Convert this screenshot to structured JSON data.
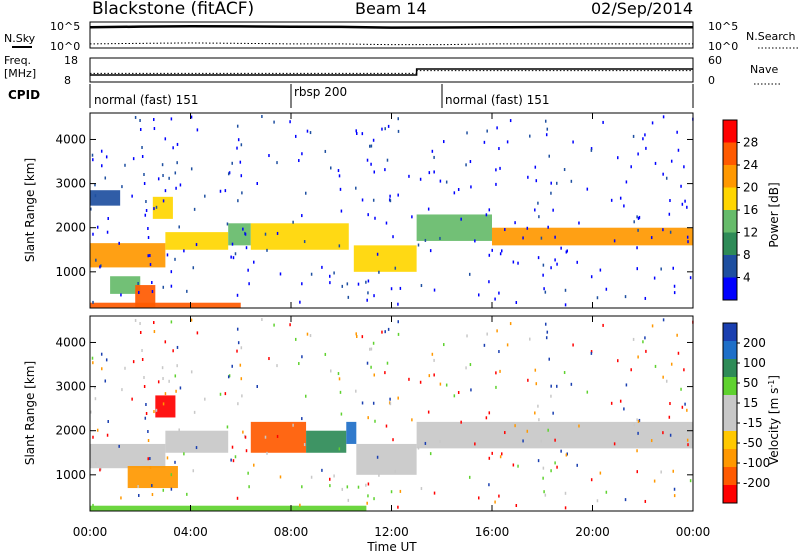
{
  "header": {
    "station": "Blackstone (fitACF)",
    "beam": "Beam 14",
    "date": "02/Sep/2014"
  },
  "sky_panel": {
    "left_label": "N.Sky",
    "right_label": "N.Search",
    "tick_top": "10^5",
    "tick_bottom": "10^0",
    "right_tick_top": "10^5",
    "right_tick_bottom": "10^0"
  },
  "freq_panel": {
    "left_label_top": "Freq.",
    "left_label_unit": "[MHz]",
    "ticks": [
      "18",
      "8"
    ],
    "right_label": "Nave",
    "right_ticks": [
      "60",
      "0"
    ]
  },
  "cpid": {
    "label": "CPID",
    "segments": [
      {
        "start_h": 0,
        "end_h": 8,
        "name": "normal (fast) 151"
      },
      {
        "start_h": 8,
        "end_h": 14,
        "name": "rbsp 200"
      },
      {
        "start_h": 14,
        "end_h": 24,
        "name": "normal (fast) 151"
      }
    ]
  },
  "colors": {
    "power": [
      "#0000ff",
      "#1e4fa0",
      "#2e8b57",
      "#66bb6a",
      "#ffd600",
      "#ff9800",
      "#ff5a00",
      "#ff0000"
    ],
    "velocity": [
      "#ff0000",
      "#ff5a00",
      "#ff9800",
      "#ffc800",
      "#c8c8c8",
      "#c8c8c8",
      "#5fd22f",
      "#2e8b57",
      "#1e6fc8",
      "#1a3fb0"
    ]
  },
  "chart_data": [
    {
      "type": "line",
      "title": "",
      "x": [
        0,
        2,
        4,
        6,
        8,
        10,
        12,
        14,
        16,
        18,
        20,
        22,
        24
      ],
      "series": [
        {
          "name": "N.Sky",
          "values": [
            18000,
            25000,
            30000,
            28000,
            24000,
            22000,
            15000,
            16000,
            18000,
            20000,
            21000,
            19000,
            18000
          ]
        },
        {
          "name": "N.Search",
          "values": [
            3,
            4,
            5,
            4,
            3,
            3,
            2,
            2,
            3,
            3,
            3,
            3,
            3
          ]
        }
      ],
      "ylim": [
        1,
        100000
      ],
      "log_scale": true
    },
    {
      "type": "line",
      "title": "",
      "x": [
        0,
        13,
        13,
        24
      ],
      "series": [
        {
          "name": "Freq.",
          "values": [
            10.5,
            10.5,
            13.5,
            13.5
          ]
        },
        {
          "name": "Nave",
          "values": [
            20,
            20,
            28,
            28
          ]
        }
      ],
      "ylim": [
        8,
        18
      ]
    },
    {
      "type": "heatmap",
      "title": "",
      "xlabel": "Time UT",
      "ylabel": "Slant Range [km]",
      "xlim": [
        0,
        24
      ],
      "ylim": [
        180,
        4600
      ],
      "x_ticks": [
        "00:00",
        "04:00",
        "08:00",
        "12:00",
        "16:00",
        "20:00",
        "00:00"
      ],
      "y_ticks": [
        "1000",
        "2000",
        "3000",
        "4000"
      ],
      "colorbar_label": "Power [dB]",
      "colorbar_ticks": [
        "4",
        "8",
        "12",
        "16",
        "20",
        "24",
        "28"
      ],
      "clim": [
        0,
        32
      ],
      "bands": [
        {
          "t0": 0.0,
          "t1": 3.0,
          "r0": 1100,
          "r1": 1650,
          "value": 22
        },
        {
          "t0": 0.0,
          "t1": 1.2,
          "r0": 2500,
          "r1": 2850,
          "value": 6
        },
        {
          "t0": 2.5,
          "t1": 3.3,
          "r0": 2200,
          "r1": 2700,
          "value": 18
        },
        {
          "t0": 3.0,
          "t1": 5.5,
          "r0": 1500,
          "r1": 1900,
          "value": 16
        },
        {
          "t0": 0.8,
          "t1": 2.0,
          "r0": 500,
          "r1": 900,
          "value": 14
        },
        {
          "t0": 1.8,
          "t1": 2.6,
          "r0": 200,
          "r1": 700,
          "value": 26
        },
        {
          "t0": 5.5,
          "t1": 6.4,
          "r0": 1600,
          "r1": 2100,
          "value": 12
        },
        {
          "t0": 6.4,
          "t1": 10.3,
          "r0": 1500,
          "r1": 2100,
          "value": 16
        },
        {
          "t0": 10.5,
          "t1": 13.0,
          "r0": 1000,
          "r1": 1600,
          "value": 18
        },
        {
          "t0": 13.0,
          "t1": 16.0,
          "r0": 1700,
          "r1": 2300,
          "value": 14
        },
        {
          "t0": 16.0,
          "t1": 24.0,
          "r0": 1600,
          "r1": 2000,
          "value": 22
        },
        {
          "t0": 0.0,
          "t1": 6.0,
          "r0": 180,
          "r1": 300,
          "value": 26
        }
      ]
    },
    {
      "type": "heatmap",
      "title": "",
      "xlabel": "Time UT",
      "ylabel": "Slant Range [km]",
      "xlim": [
        0,
        24
      ],
      "ylim": [
        180,
        4600
      ],
      "x_ticks": [
        "00:00",
        "04:00",
        "08:00",
        "12:00",
        "16:00",
        "20:00",
        "00:00"
      ],
      "y_ticks": [
        "1000",
        "2000",
        "3000",
        "4000"
      ],
      "colorbar_label": "Velocity [m s^-1]",
      "colorbar_ticks": [
        "-200",
        "-100",
        "-50",
        "-15",
        "15",
        "50",
        "100",
        "200"
      ],
      "clim": [
        -250,
        250
      ],
      "bands": [
        {
          "t0": 0.0,
          "t1": 3.0,
          "r0": 1150,
          "r1": 1700,
          "value": 0
        },
        {
          "t0": 2.6,
          "t1": 3.4,
          "r0": 2300,
          "r1": 2800,
          "value": -200
        },
        {
          "t0": 3.0,
          "t1": 5.5,
          "r0": 1500,
          "r1": 2000,
          "value": 0
        },
        {
          "t0": 1.5,
          "t1": 3.5,
          "r0": 700,
          "r1": 1200,
          "value": -70
        },
        {
          "t0": 6.4,
          "t1": 8.6,
          "r0": 1500,
          "r1": 2200,
          "value": -150
        },
        {
          "t0": 8.6,
          "t1": 10.2,
          "r0": 1500,
          "r1": 2000,
          "value": 80
        },
        {
          "t0": 10.2,
          "t1": 10.6,
          "r0": 1700,
          "r1": 2200,
          "value": 200
        },
        {
          "t0": 10.6,
          "t1": 13.0,
          "r0": 1000,
          "r1": 1700,
          "value": 0
        },
        {
          "t0": 13.0,
          "t1": 24.0,
          "r0": 1600,
          "r1": 2200,
          "value": 0
        },
        {
          "t0": 0.0,
          "t1": 11.0,
          "r0": 180,
          "r1": 300,
          "value": 40
        }
      ]
    }
  ]
}
